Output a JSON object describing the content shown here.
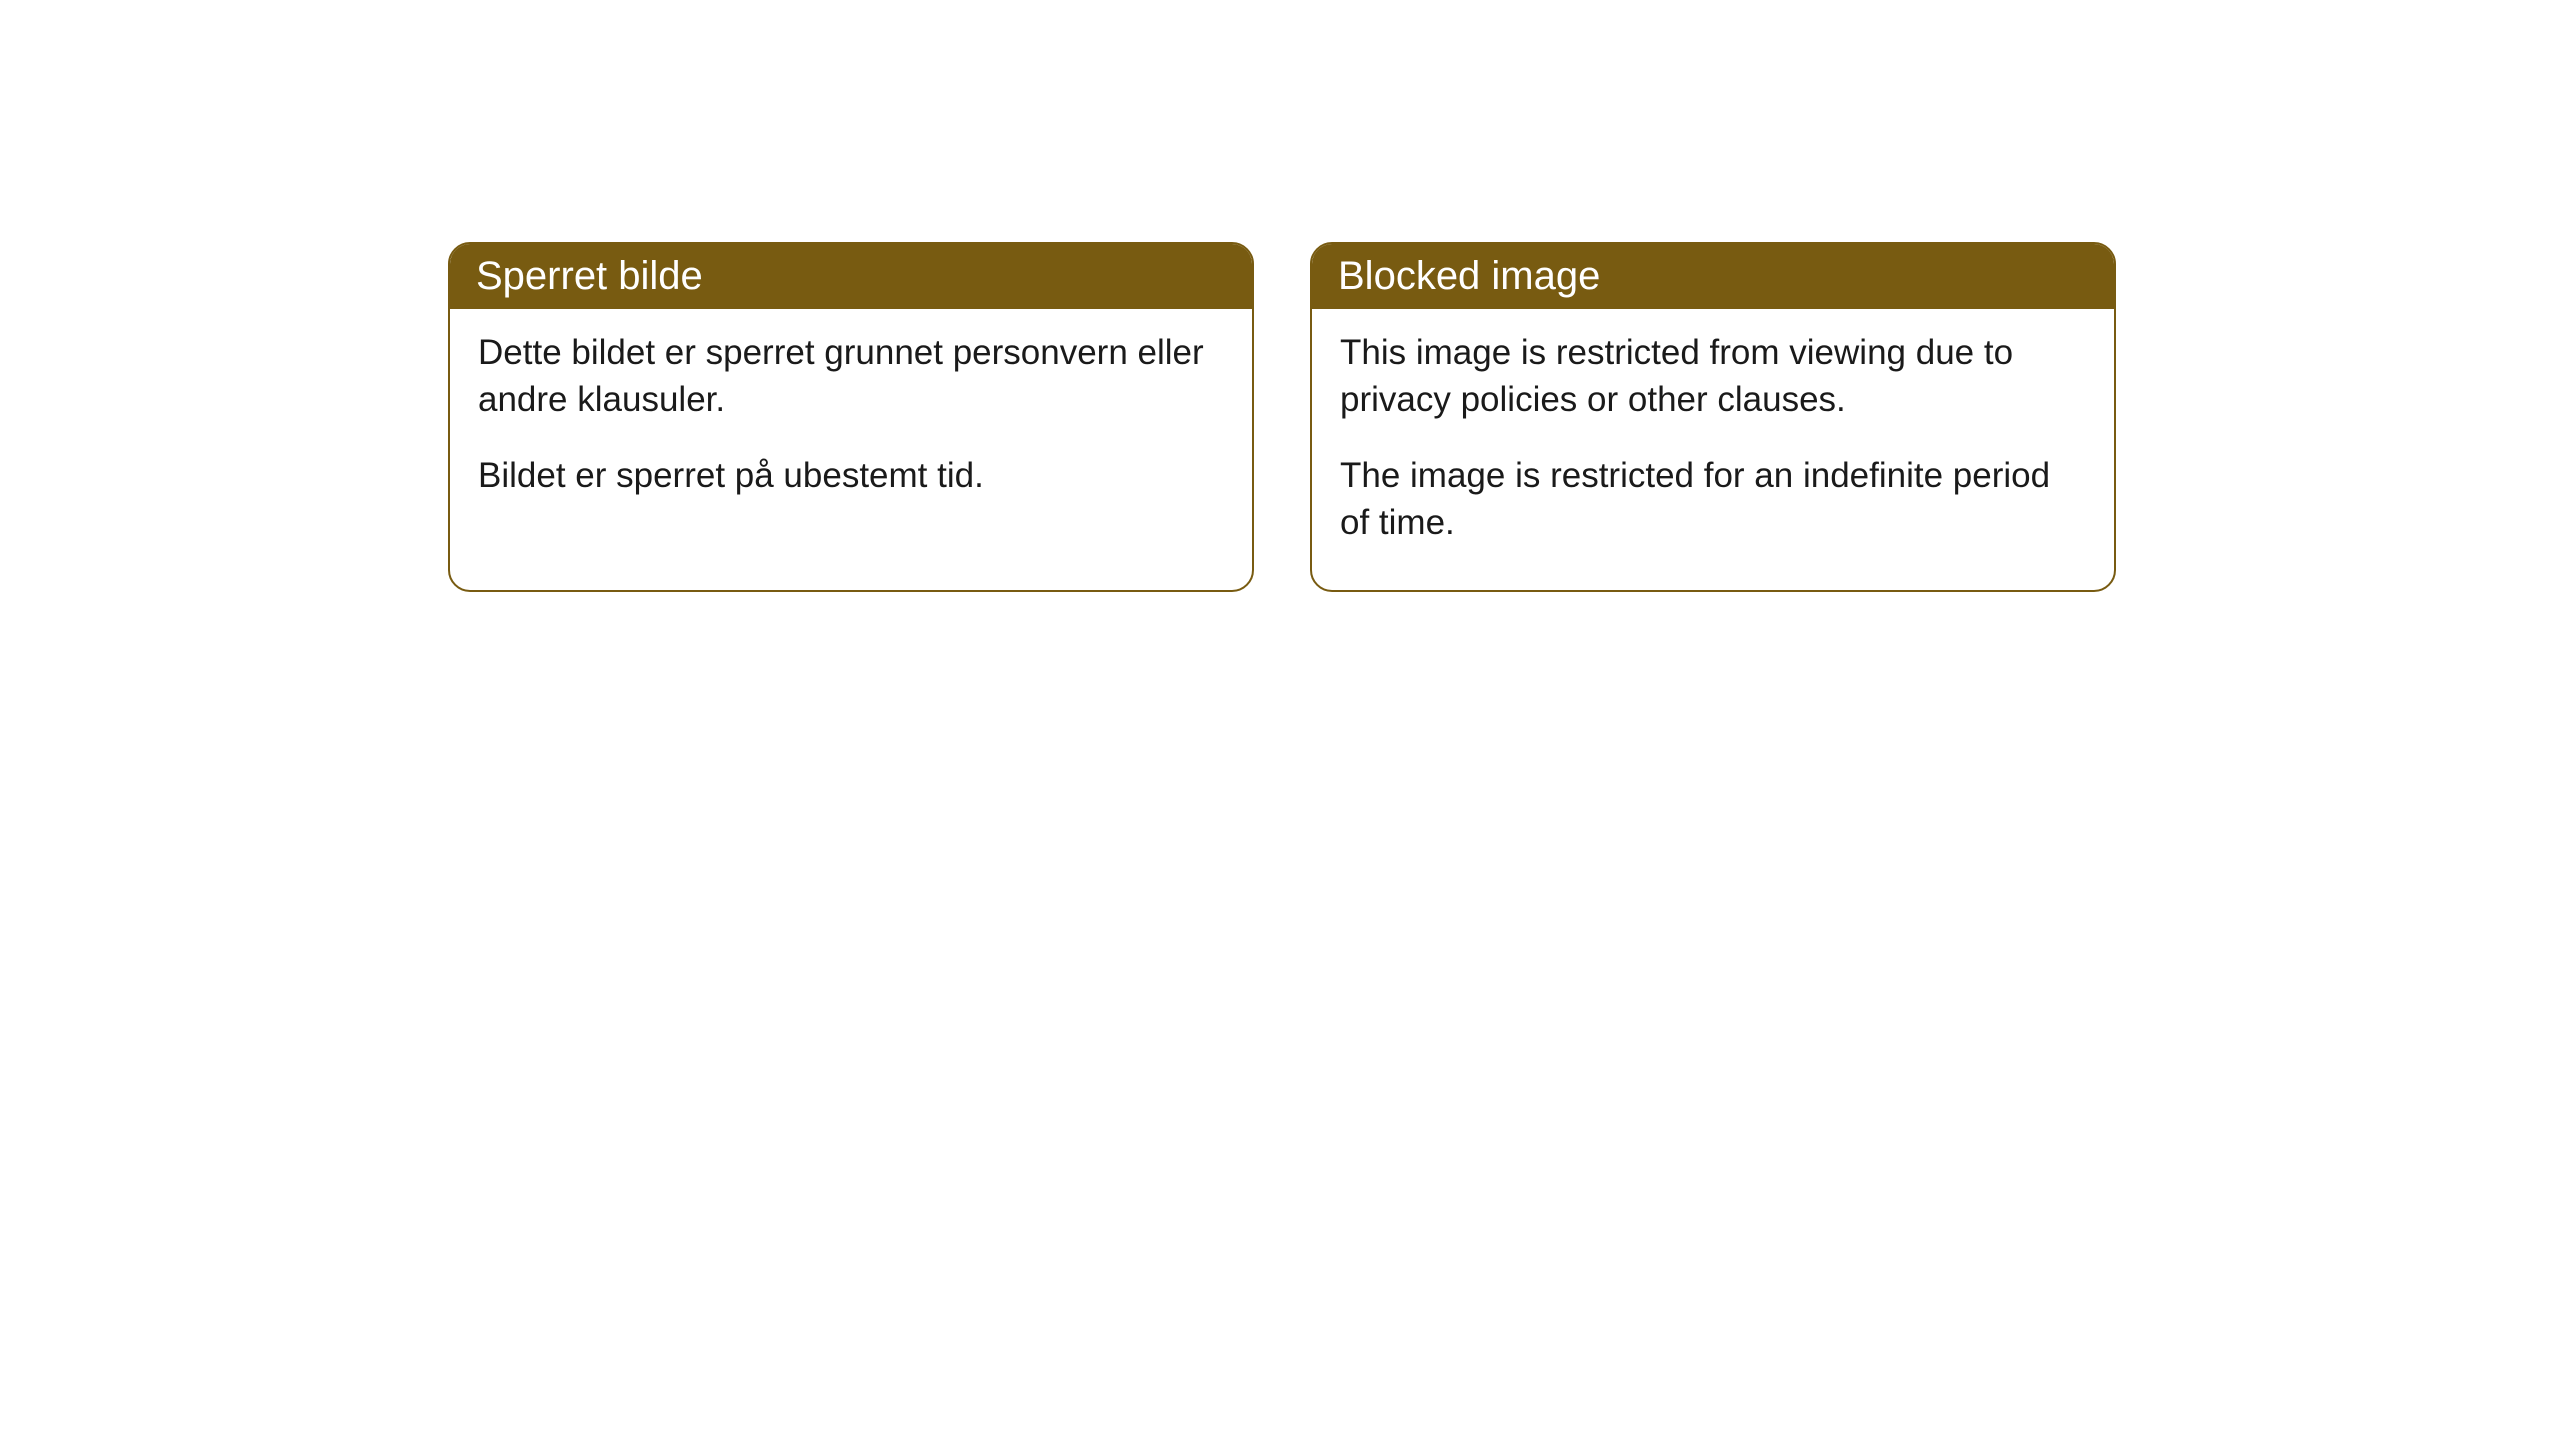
{
  "cards": [
    {
      "title": "Sperret bilde",
      "paragraph1": "Dette bildet er sperret grunnet personvern eller andre klausuler.",
      "paragraph2": "Bildet er sperret på ubestemt tid."
    },
    {
      "title": "Blocked image",
      "paragraph1": "This image is restricted from viewing due to privacy policies or other clauses.",
      "paragraph2": "The image is restricted for an indefinite period of time."
    }
  ],
  "styling": {
    "header_background": "#785b11",
    "header_text_color": "#ffffff",
    "border_color": "#785b11",
    "body_background": "#ffffff",
    "body_text_color": "#1a1a1a",
    "border_radius": 22,
    "header_fontsize": 40,
    "body_fontsize": 35
  }
}
